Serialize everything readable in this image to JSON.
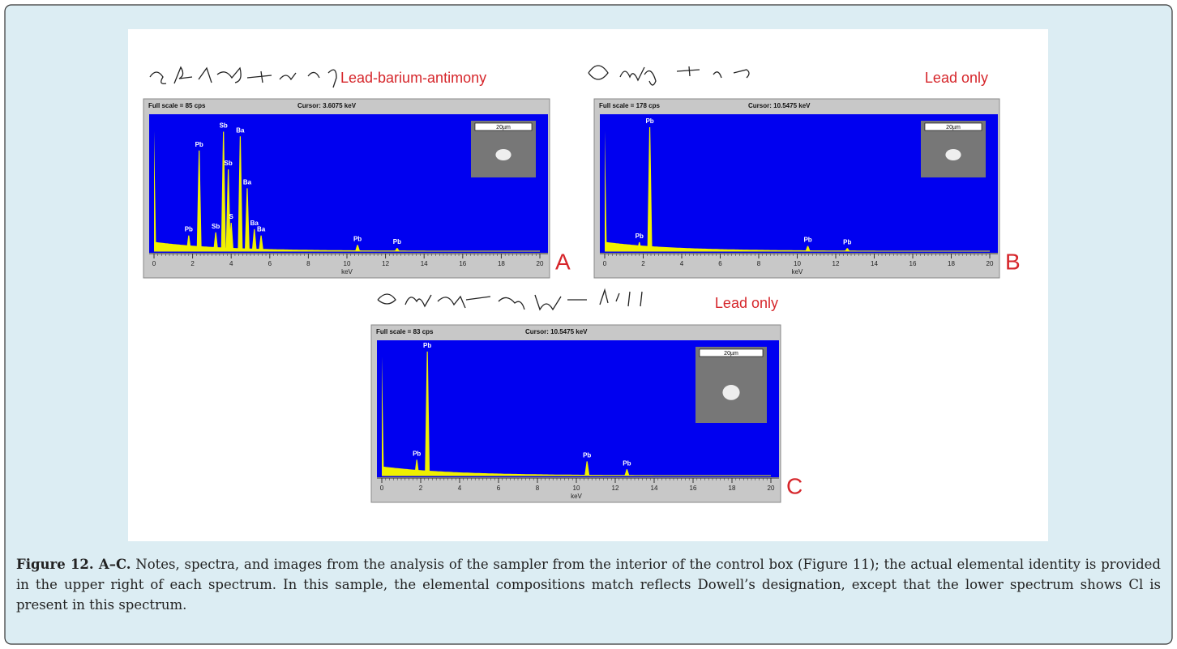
{
  "figure": {
    "panels": [
      {
        "letter": "A",
        "note": "Lead-barium-antimony",
        "full_scale": "Full scale = 85  cps",
        "cursor": "Cursor:  3.6075 keV",
        "scale_bar": "20µm",
        "x_label": "keV",
        "xlim": [
          0,
          20
        ],
        "xticks": [
          0,
          2,
          4,
          6,
          8,
          10,
          12,
          14,
          16,
          18,
          20
        ],
        "ylim": [
          0,
          85
        ],
        "peaks": [
          {
            "label": "Pb",
            "kev": 2.34,
            "cps": 64
          },
          {
            "label": "Sb",
            "kev": 3.6,
            "cps": 76
          },
          {
            "label": "Ba",
            "kev": 4.47,
            "cps": 73
          },
          {
            "label": "Sb",
            "kev": 3.85,
            "cps": 52
          },
          {
            "label": "Ba",
            "kev": 4.83,
            "cps": 40
          },
          {
            "label": "Pb",
            "kev": 1.8,
            "cps": 10
          },
          {
            "label": "Sb",
            "kev": 3.2,
            "cps": 12
          },
          {
            "label": "S",
            "kev": 4.0,
            "cps": 18
          },
          {
            "label": "Ba",
            "kev": 5.2,
            "cps": 14
          },
          {
            "label": "Ba",
            "kev": 5.55,
            "cps": 10
          },
          {
            "label": "Pb",
            "kev": 10.55,
            "cps": 4
          },
          {
            "label": "Pb",
            "kev": 12.6,
            "cps": 2
          }
        ]
      },
      {
        "letter": "B",
        "note": "Lead only",
        "full_scale": "Full scale = 178  cps",
        "cursor": "Cursor:  10.5475 keV",
        "scale_bar": "20µm",
        "x_label": "keV",
        "xlim": [
          0,
          20
        ],
        "xticks": [
          0,
          2,
          4,
          6,
          8,
          10,
          12,
          14,
          16,
          18,
          20
        ],
        "ylim": [
          0,
          178
        ],
        "peaks": [
          {
            "label": "Pb",
            "kev": 2.34,
            "cps": 165
          },
          {
            "label": "Pb",
            "kev": 1.8,
            "cps": 12
          },
          {
            "label": "Pb",
            "kev": 10.55,
            "cps": 7
          },
          {
            "label": "Pb",
            "kev": 12.6,
            "cps": 4
          }
        ]
      },
      {
        "letter": "C",
        "note": "Lead only",
        "full_scale": "Full scale = 83  cps",
        "cursor": "Cursor:  10.5475 keV",
        "scale_bar": "20µm",
        "x_label": "keV",
        "xlim": [
          0,
          20
        ],
        "xticks": [
          0,
          2,
          4,
          6,
          8,
          10,
          12,
          14,
          16,
          18,
          20
        ],
        "ylim": [
          0,
          83
        ],
        "peaks": [
          {
            "label": "Pb",
            "kev": 2.34,
            "cps": 78
          },
          {
            "label": "Pb",
            "kev": 1.8,
            "cps": 10
          },
          {
            "label": "Pb",
            "kev": 10.55,
            "cps": 9
          },
          {
            "label": "Pb",
            "kev": 12.6,
            "cps": 4
          }
        ]
      }
    ]
  },
  "caption": {
    "label": "Figure 12. A–C.",
    "text": "Notes, spectra, and images from the analysis of the sampler from the interior of the control box (Figure 11); the actual elemental identity is provided in the upper right of each spectrum. In this sample, the elemental compositions match reflects Dowell’s designation, except that the lower spectrum shows Cl is present in this spectrum."
  }
}
